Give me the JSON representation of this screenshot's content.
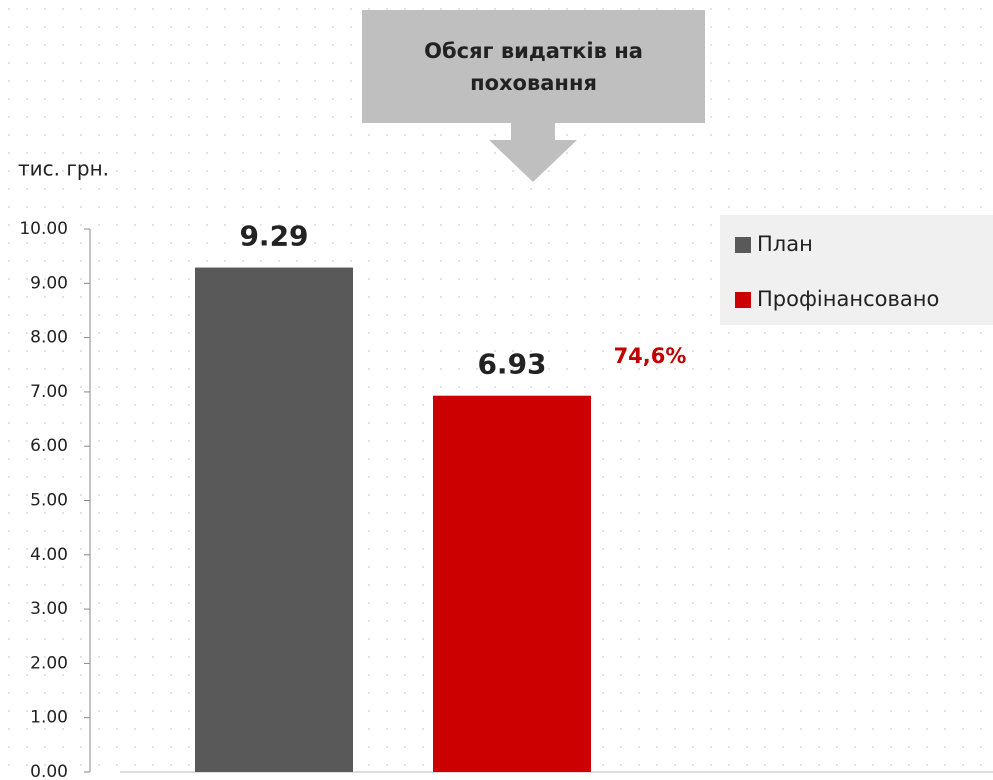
{
  "chart_data": {
    "type": "bar",
    "title": "Обсяг видатків на поховання",
    "y_label": "тис. грн.",
    "annotation": "74,6%",
    "categories": [
      null
    ],
    "series": [
      {
        "name": "План",
        "color": "#595959",
        "values": [
          9.29
        ]
      },
      {
        "name": "Профінансовано",
        "color": "#cc0000",
        "values": [
          6.93
        ]
      }
    ],
    "ylim": [
      0,
      10
    ],
    "yticks": [
      {
        "value": 0,
        "label": "0.00"
      },
      {
        "value": 1,
        "label": "1.00"
      },
      {
        "value": 2,
        "label": "2.00"
      },
      {
        "value": 3,
        "label": "3.00"
      },
      {
        "value": 4,
        "label": "4.00"
      },
      {
        "value": 5,
        "label": "5.00"
      },
      {
        "value": 6,
        "label": "6.00"
      },
      {
        "value": 7,
        "label": "7.00"
      },
      {
        "value": 8,
        "label": "8.00"
      },
      {
        "value": 9,
        "label": "9.00"
      },
      {
        "value": 10,
        "label": "10.00"
      }
    ],
    "legend": "top-right"
  }
}
